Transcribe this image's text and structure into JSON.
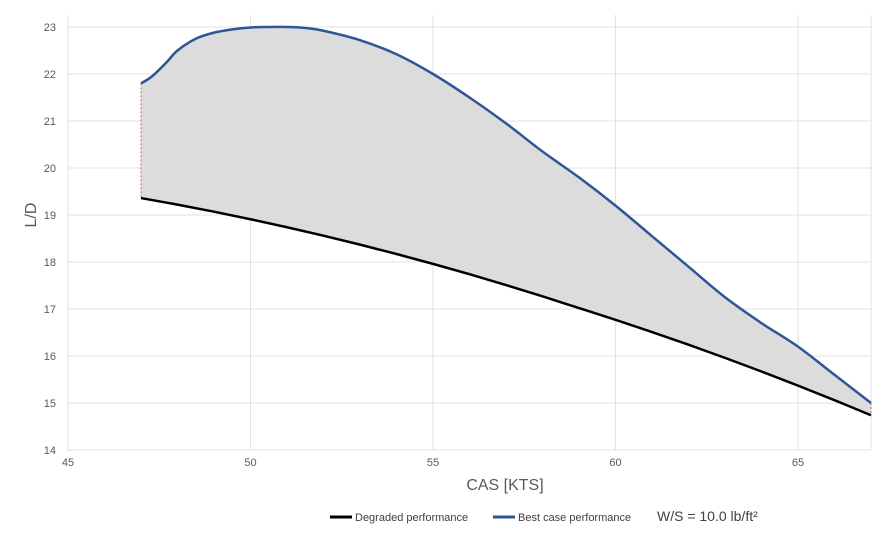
{
  "chart_data": {
    "type": "line",
    "title": "",
    "xlabel": "CAS [KTS]",
    "ylabel": "L/D",
    "xlim": [
      45,
      67
    ],
    "ylim": [
      14,
      23
    ],
    "x_ticks": [
      45,
      50,
      55,
      60,
      65
    ],
    "y_ticks": [
      14,
      15,
      16,
      17,
      18,
      19,
      20,
      21,
      22,
      23
    ],
    "grid": true,
    "legend_position": "bottom",
    "shaded_band_between_series": true,
    "series": [
      {
        "name": "Degraded performance",
        "color": "#000000",
        "x": [
          47,
          48,
          49,
          50,
          51,
          52,
          53,
          54,
          55,
          56,
          57,
          58,
          59,
          60,
          61,
          62,
          63,
          64,
          65,
          66,
          67
        ],
        "y": [
          19.36,
          19.22,
          19.07,
          18.91,
          18.74,
          18.56,
          18.37,
          18.17,
          17.96,
          17.74,
          17.51,
          17.27,
          17.02,
          16.77,
          16.51,
          16.24,
          15.96,
          15.67,
          15.37,
          15.06,
          14.74
        ]
      },
      {
        "name": "Best case performance",
        "color": "#2f5597",
        "x": [
          47,
          47.3,
          47.7,
          48,
          48.5,
          49,
          49.5,
          50,
          50.5,
          51,
          51.5,
          52,
          53,
          54,
          55,
          56,
          57,
          58,
          59,
          60,
          61,
          62,
          63,
          64,
          65,
          66,
          67
        ],
        "y": [
          21.8,
          21.95,
          22.25,
          22.5,
          22.75,
          22.88,
          22.95,
          22.99,
          23.0,
          23.0,
          22.98,
          22.92,
          22.72,
          22.42,
          22.0,
          21.5,
          20.95,
          20.35,
          19.8,
          19.2,
          18.55,
          17.9,
          17.25,
          16.7,
          16.2,
          15.6,
          15.0
        ]
      }
    ],
    "annotation": "W/S = 10.0 lb/ft²"
  }
}
